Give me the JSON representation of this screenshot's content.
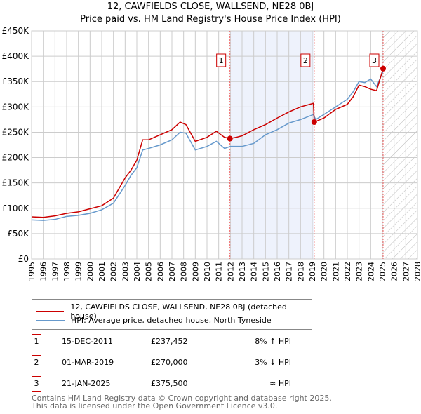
{
  "chart_data": {
    "type": "line",
    "title": "12, CAWFIELDS CLOSE, WALLSEND, NE28 0BJ",
    "subtitle": "Price paid vs. HM Land Registry's House Price Index (HPI)",
    "xlim": [
      1995,
      2028
    ],
    "ylim": [
      0,
      450000
    ],
    "y_ticks": [
      {
        "v": 0,
        "l": "£0"
      },
      {
        "v": 50000,
        "l": "£50K"
      },
      {
        "v": 100000,
        "l": "£100K"
      },
      {
        "v": 150000,
        "l": "£150K"
      },
      {
        "v": 200000,
        "l": "£200K"
      },
      {
        "v": 250000,
        "l": "£250K"
      },
      {
        "v": 300000,
        "l": "£300K"
      },
      {
        "v": 350000,
        "l": "£350K"
      },
      {
        "v": 400000,
        "l": "£400K"
      },
      {
        "v": 450000,
        "l": "£450K"
      }
    ],
    "x_ticks": [
      "1995",
      "1996",
      "1997",
      "1998",
      "1999",
      "2000",
      "2001",
      "2002",
      "2003",
      "2004",
      "2005",
      "2006",
      "2007",
      "2008",
      "2009",
      "2010",
      "2011",
      "2012",
      "2013",
      "2014",
      "2015",
      "2016",
      "2017",
      "2018",
      "2019",
      "2020",
      "2021",
      "2022",
      "2023",
      "2024",
      "2025",
      "2026",
      "2027",
      "2028"
    ],
    "grid": true,
    "shaded_range": [
      2011.96,
      2019.17
    ],
    "hatched_range": [
      2025.06,
      2028
    ],
    "series": [
      {
        "name": "12, CAWFIELDS CLOSE, WALLSEND, NE28 0BJ (detached house)",
        "color": "#cc0000",
        "x": [
          1995,
          1996,
          1997,
          1998,
          1999,
          2000,
          2001,
          2002,
          2003,
          2003.5,
          2004,
          2004.5,
          2005,
          2006,
          2007,
          2007.7,
          2008.2,
          2009,
          2010,
          2010.8,
          2011.5,
          2011.96,
          2012.5,
          2013,
          2014,
          2015,
          2016,
          2017,
          2018,
          2019.1,
          2019.17,
          2020,
          2021,
          2022,
          2022.5,
          2023,
          2023.5,
          2024,
          2024.5,
          2025.06
        ],
        "y": [
          83000,
          82000,
          85000,
          90000,
          93000,
          99000,
          105000,
          120000,
          160000,
          175000,
          195000,
          235000,
          235000,
          245000,
          255000,
          270000,
          265000,
          232000,
          240000,
          252000,
          240000,
          237452,
          240000,
          243000,
          255000,
          265000,
          278000,
          290000,
          300000,
          307000,
          270000,
          278000,
          295000,
          305000,
          320000,
          343000,
          340000,
          335000,
          332000,
          375500
        ]
      },
      {
        "name": "HPI: Average price, detached house, North Tyneside",
        "color": "#6699cc",
        "x": [
          1995,
          1996,
          1997,
          1998,
          1999,
          2000,
          2001,
          2002,
          2003,
          2003.5,
          2004,
          2004.5,
          2005,
          2006,
          2007,
          2007.7,
          2008.2,
          2009,
          2010,
          2010.8,
          2011.5,
          2012,
          2013,
          2014,
          2015,
          2016,
          2017,
          2018,
          2019.1,
          2019.3,
          2020,
          2021,
          2022,
          2022.5,
          2023,
          2023.5,
          2024,
          2024.5,
          2025.06
        ],
        "y": [
          77000,
          76000,
          78000,
          84000,
          86000,
          90000,
          97000,
          110000,
          145000,
          165000,
          180000,
          215000,
          218000,
          225000,
          235000,
          250000,
          248000,
          215000,
          222000,
          232000,
          218000,
          222000,
          222000,
          228000,
          245000,
          255000,
          268000,
          275000,
          285000,
          275000,
          285000,
          300000,
          315000,
          330000,
          350000,
          348000,
          355000,
          340000,
          370000
        ]
      }
    ],
    "sales": [
      {
        "label": "1",
        "x": 2011.96,
        "y": 237452
      },
      {
        "label": "2",
        "x": 2019.17,
        "y": 270000
      },
      {
        "label": "3",
        "x": 2025.06,
        "y": 375500
      }
    ]
  },
  "table": [
    {
      "num": "1",
      "date": "15-DEC-2011",
      "price": "£237,452",
      "hpi": "8% ↑ HPI"
    },
    {
      "num": "2",
      "date": "01-MAR-2019",
      "price": "£270,000",
      "hpi": "3% ↓ HPI"
    },
    {
      "num": "3",
      "date": "21-JAN-2025",
      "price": "£375,500",
      "hpi": "≈ HPI"
    }
  ],
  "footer": {
    "line1": "Contains HM Land Registry data © Crown copyright and database right 2025.",
    "line2": "This data is licensed under the Open Government Licence v3.0."
  }
}
